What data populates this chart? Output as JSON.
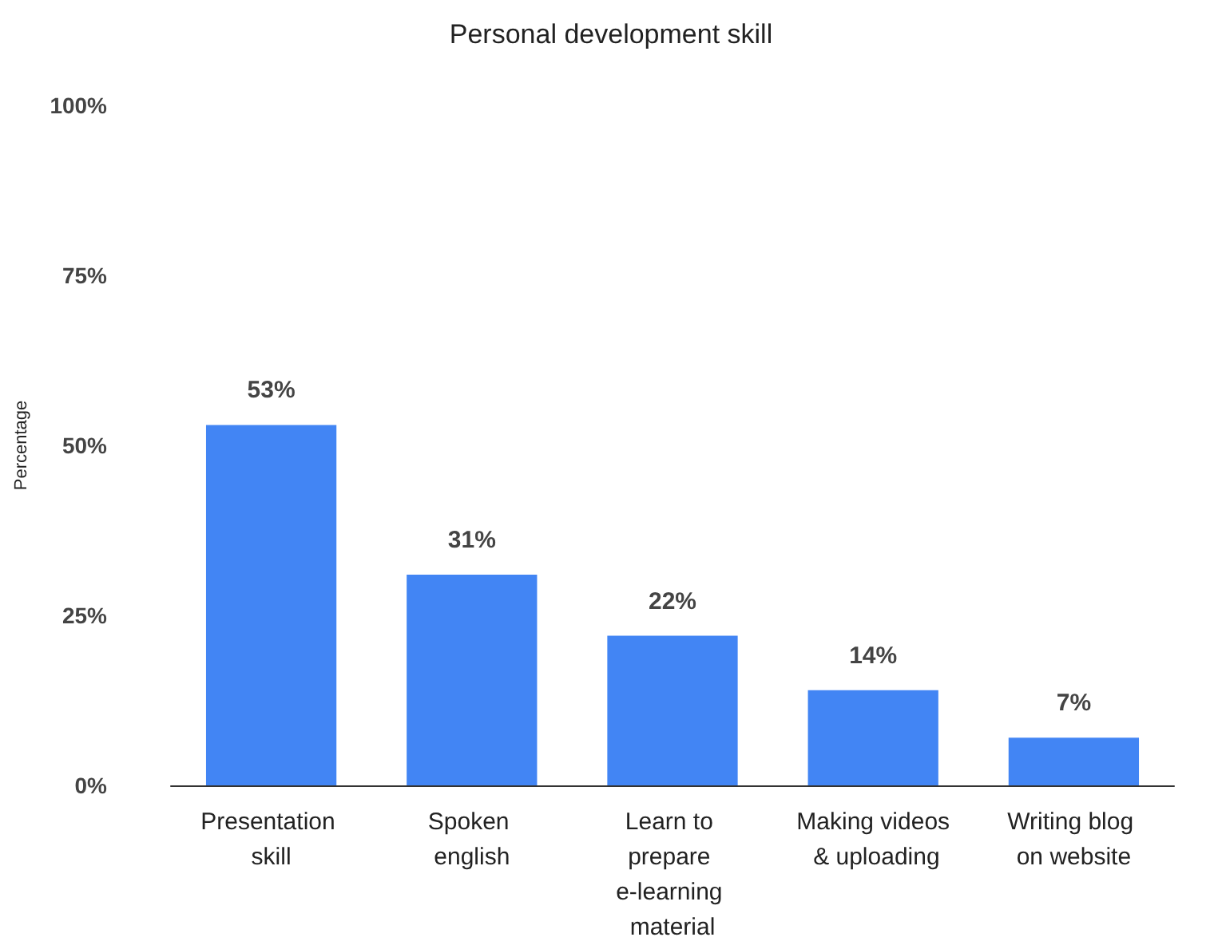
{
  "chart_data": {
    "type": "bar",
    "title": "Personal development skill",
    "ylabel": "Percentage",
    "categories": [
      "Presentation skill",
      "Spoken english",
      "Learn to prepare e-learning material",
      "Making videos & uploading",
      "Writing blog on website"
    ],
    "values": [
      53,
      31,
      22,
      14,
      7
    ],
    "color": "#4285f4",
    "value_labels": [
      "53%",
      "31%",
      "22%",
      "14%",
      "7%"
    ],
    "ylim": [
      0,
      100
    ],
    "yticks": [
      {
        "value": 0,
        "label": "0%"
      },
      {
        "value": 25,
        "label": "25%"
      },
      {
        "value": 50,
        "label": "50%"
      },
      {
        "value": 75,
        "label": "75%"
      },
      {
        "value": 100,
        "label": "100%"
      }
    ]
  }
}
